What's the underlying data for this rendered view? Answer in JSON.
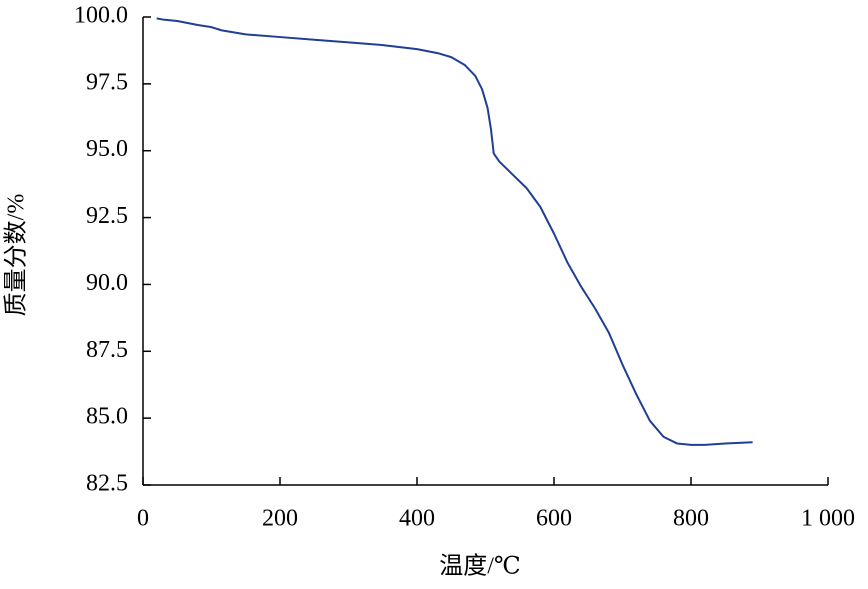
{
  "chart_data": {
    "type": "line",
    "x_label": "温度/℃",
    "y_label": "质量分数/%",
    "x": [
      20,
      30,
      50,
      80,
      100,
      115,
      150,
      200,
      250,
      300,
      350,
      400,
      430,
      450,
      470,
      485,
      495,
      503,
      508,
      512,
      520,
      540,
      560,
      580,
      600,
      620,
      640,
      660,
      680,
      700,
      720,
      740,
      760,
      780,
      800,
      820,
      850,
      890
    ],
    "series": [
      {
        "color": "#1f3f94",
        "values": [
          99.95,
          99.9,
          99.85,
          99.7,
          99.62,
          99.5,
          99.35,
          99.25,
          99.15,
          99.05,
          98.95,
          98.8,
          98.65,
          98.5,
          98.2,
          97.8,
          97.3,
          96.6,
          95.8,
          94.9,
          94.6,
          94.1,
          93.6,
          92.9,
          91.9,
          90.8,
          89.9,
          89.1,
          88.2,
          87.0,
          85.9,
          84.9,
          84.3,
          84.05,
          84.0,
          84.0,
          84.05,
          84.1
        ]
      }
    ],
    "xlim": [
      0,
      1000
    ],
    "xticks": [
      0,
      200,
      400,
      600,
      800,
      {
        "value": 1000,
        "label": "1 000"
      }
    ],
    "ylim": [
      82.5,
      100
    ],
    "yticks": [
      {
        "value": 82.5,
        "label": "82.5"
      },
      {
        "value": 85,
        "label": "85.0"
      },
      87.5,
      {
        "value": 90,
        "label": "90.0"
      },
      92.5,
      {
        "value": 95,
        "label": "95.0"
      },
      97.5,
      {
        "value": 100,
        "label": "100.0"
      }
    ]
  }
}
